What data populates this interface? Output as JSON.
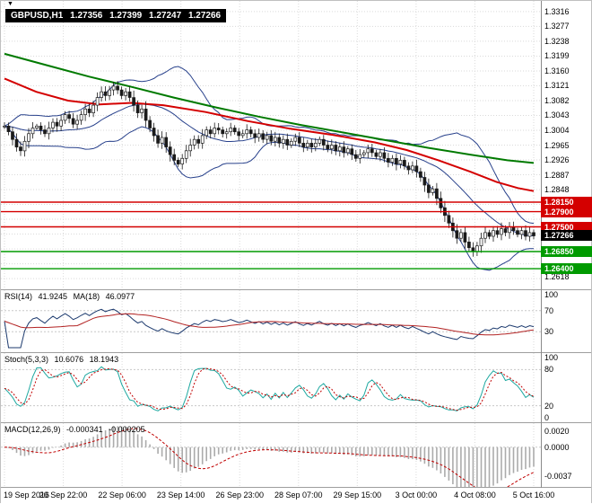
{
  "symbol_label": {
    "symbol": "GBPUSD,H1",
    "open": "1.27356",
    "high": "1.27399",
    "low": "1.27247",
    "close": "1.27266"
  },
  "panels": {
    "rsi": {
      "name": "RSI(14)",
      "value": "41.9245",
      "ma_name": "MA(18)",
      "ma_value": "46.0977"
    },
    "stoch": {
      "name": "Stoch(5,3,3)",
      "value": "10.6076",
      "signal": "18.1943"
    },
    "macd": {
      "name": "MACD(12,26,9)",
      "value": "-0.000341",
      "signal": "-0.000205"
    }
  },
  "chart_data": {
    "type": "candlestick",
    "title": "GBPUSD H1",
    "x_labels": [
      "19 Sep 2016",
      "20 Sep 22:00",
      "22 Sep 06:00",
      "23 Sep 14:00",
      "26 Sep 23:00",
      "28 Sep 07:00",
      "29 Sep 15:00",
      "3 Oct 00:00",
      "4 Oct 08:00",
      "5 Oct 16:00"
    ],
    "ylim": [
      1.26,
      1.333
    ],
    "y_ticks": [
      {
        "label": "1.3316",
        "value": 1.3316
      },
      {
        "label": "1.3277",
        "value": 1.3277
      },
      {
        "label": "1.3238",
        "value": 1.3238
      },
      {
        "label": "1.3199",
        "value": 1.3199
      },
      {
        "label": "1.3160",
        "value": 1.316
      },
      {
        "label": "1.3121",
        "value": 1.3121
      },
      {
        "label": "1.3082",
        "value": 1.3082
      },
      {
        "label": "1.3043",
        "value": 1.3043
      },
      {
        "label": "1.3004",
        "value": 1.3004
      },
      {
        "label": "1.2965",
        "value": 1.2965
      },
      {
        "label": "1.2926",
        "value": 1.2926
      },
      {
        "label": "1.2887",
        "value": 1.2887
      },
      {
        "label": "1.2848",
        "value": 1.2848
      },
      {
        "label": "1.2618",
        "value": 1.2618
      }
    ],
    "closes": [
      1.3015,
      1.3,
      1.298,
      1.296,
      1.295,
      1.2975,
      1.2995,
      1.301,
      1.3015,
      1.3005,
      1.2995,
      1.301,
      1.3025,
      1.3015,
      1.303,
      1.3045,
      1.3035,
      1.302,
      1.303,
      1.3045,
      1.306,
      1.305,
      1.307,
      1.309,
      1.3105,
      1.3095,
      1.311,
      1.312,
      1.311,
      1.3095,
      1.3105,
      1.309,
      1.307,
      1.305,
      1.306,
      1.303,
      1.301,
      1.299,
      1.297,
      1.2985,
      1.296,
      1.294,
      1.2925,
      1.2915,
      1.293,
      1.295,
      1.2965,
      1.298,
      1.297,
      1.299,
      1.3005,
      1.2995,
      1.301,
      1.3005,
      1.2995,
      1.3,
      1.301,
      1.3,
      1.299,
      1.2995,
      1.3005,
      1.2995,
      1.2985,
      1.2995,
      1.298,
      1.299,
      1.2975,
      1.2985,
      1.297,
      1.298,
      1.2965,
      1.2975,
      1.2985,
      1.297,
      1.296,
      1.297,
      1.296,
      1.297,
      1.298,
      1.2965,
      1.2955,
      1.2965,
      1.295,
      1.296,
      1.2945,
      1.2955,
      1.294,
      1.293,
      1.294,
      1.2945,
      1.2955,
      1.2945,
      1.2935,
      1.2945,
      1.293,
      1.292,
      1.293,
      1.2915,
      1.2925,
      1.291,
      1.29,
      1.291,
      1.2895,
      1.288,
      1.286,
      1.284,
      1.285,
      1.2825,
      1.28,
      1.278,
      1.276,
      1.274,
      1.272,
      1.2735,
      1.271,
      1.2695,
      1.2685,
      1.27,
      1.272,
      1.2735,
      1.2725,
      1.274,
      1.273,
      1.2745,
      1.2735,
      1.275,
      1.274,
      1.273,
      1.274,
      1.2725,
      1.2735,
      1.27266
    ],
    "overlays": {
      "bollinger": {
        "period": 20,
        "deviation": 2,
        "color": "#27408b"
      },
      "ma_green": {
        "color": "#007a00",
        "points": [
          [
            0,
            1.3205
          ],
          [
            0.08,
            1.3175
          ],
          [
            0.16,
            1.3145
          ],
          [
            0.24,
            1.3118
          ],
          [
            0.32,
            1.309
          ],
          [
            0.4,
            1.3064
          ],
          [
            0.48,
            1.304
          ],
          [
            0.56,
            1.3018
          ],
          [
            0.64,
            1.2998
          ],
          [
            0.72,
            1.2978
          ],
          [
            0.8,
            1.2958
          ],
          [
            0.88,
            1.294
          ],
          [
            0.95,
            1.2925
          ],
          [
            1,
            1.2918
          ]
        ]
      },
      "ma_red": {
        "color": "#d40000",
        "points": [
          [
            0,
            1.314
          ],
          [
            0.06,
            1.3105
          ],
          [
            0.12,
            1.3082
          ],
          [
            0.18,
            1.3072
          ],
          [
            0.24,
            1.3076
          ],
          [
            0.3,
            1.307
          ],
          [
            0.38,
            1.3052
          ],
          [
            0.46,
            1.3028
          ],
          [
            0.54,
            1.3008
          ],
          [
            0.62,
            1.2992
          ],
          [
            0.7,
            1.2972
          ],
          [
            0.76,
            1.2952
          ],
          [
            0.82,
            1.2925
          ],
          [
            0.88,
            1.2895
          ],
          [
            0.93,
            1.2868
          ],
          [
            0.97,
            1.2852
          ],
          [
            1,
            1.2844
          ]
        ]
      }
    },
    "horizontal_lines": [
      {
        "value": 1.2815,
        "label": "1.28150",
        "color": "#d40000",
        "kind": "resistance"
      },
      {
        "value": 1.279,
        "label": "1.27900",
        "color": "#d40000",
        "kind": "resistance"
      },
      {
        "value": 1.275,
        "label": "1.27500",
        "color": "#d40000",
        "kind": "resistance"
      },
      {
        "value": 1.2685,
        "label": "1.26850",
        "color": "#009a00",
        "kind": "support"
      },
      {
        "value": 1.264,
        "label": "1.26400",
        "color": "#009a00",
        "kind": "support"
      }
    ],
    "current_price": {
      "value": 1.27266,
      "label": "1.27266",
      "color": "#000000"
    },
    "indicators": [
      {
        "id": "rsi",
        "period": 14,
        "ma_period": 18,
        "ylim": [
          0,
          100
        ],
        "levels": [
          70,
          30
        ],
        "colors": {
          "line": "#1c3a6e",
          "ma": "#b22222"
        },
        "y_ticks": [
          {
            "label": "100",
            "value": 100
          },
          {
            "label": "70",
            "value": 70
          },
          {
            "label": "30",
            "value": 30
          }
        ]
      },
      {
        "id": "stoch",
        "k": 5,
        "slowing": 3,
        "d": 3,
        "ylim": [
          0,
          100
        ],
        "levels": [
          80,
          20
        ],
        "colors": {
          "k": "#1da8a0",
          "d": "#c00000"
        },
        "y_ticks": [
          {
            "label": "100",
            "value": 100
          },
          {
            "label": "80",
            "value": 80
          },
          {
            "label": "20",
            "value": 20
          },
          {
            "label": "0",
            "value": 0
          }
        ]
      },
      {
        "id": "macd",
        "fast": 12,
        "slow": 26,
        "signal": 9,
        "ylim": [
          -0.0045,
          0.0025
        ],
        "levels": [],
        "colors": {
          "histogram": "#ababab",
          "signal": "#c00000"
        },
        "y_ticks": [
          {
            "label": "0.0020",
            "value": 0.002
          },
          {
            "label": "0.0000",
            "value": 0
          },
          {
            "label": "-0.0037",
            "value": -0.0037
          }
        ]
      }
    ]
  }
}
